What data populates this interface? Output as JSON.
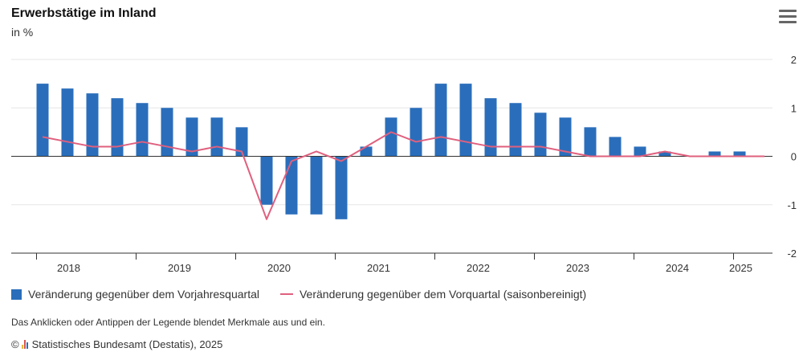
{
  "header": {
    "title": "Erwerbstätige im Inland",
    "subtitle": "in %"
  },
  "menu": {
    "icon": "hamburger-menu-icon"
  },
  "legend": {
    "bars_label": "Veränderung gegenüber dem Vorjahresquartal",
    "line_label": "Veränderung gegenüber dem Vorquartal (saisonbereinigt)"
  },
  "hint": "Das Anklicken oder Antippen der Legende blendet Merkmale aus und ein.",
  "credits": {
    "symbol": "©",
    "text": "Statistisches Bundesamt (Destatis), 2025"
  },
  "colors": {
    "bar": "#2a6ebb",
    "line": "#e0607e",
    "grid": "#e6e6e6",
    "axis": "#333333",
    "logo": [
      "#e8b83a",
      "#d9534f",
      "#2a6ebb"
    ]
  },
  "chart_data": {
    "type": "bar+line",
    "x": [
      "2018 Q1",
      "2018 Q2",
      "2018 Q3",
      "2018 Q4",
      "2019 Q1",
      "2019 Q2",
      "2019 Q3",
      "2019 Q4",
      "2020 Q1",
      "2020 Q2",
      "2020 Q3",
      "2020 Q4",
      "2021 Q1",
      "2021 Q2",
      "2021 Q3",
      "2021 Q4",
      "2022 Q1",
      "2022 Q2",
      "2022 Q3",
      "2022 Q4",
      "2023 Q1",
      "2023 Q2",
      "2023 Q3",
      "2023 Q4",
      "2024 Q1",
      "2024 Q2",
      "2024 Q3",
      "2024 Q4",
      "2025 Q1",
      "2025 Q2"
    ],
    "year_labels": [
      "2018",
      "2019",
      "2020",
      "2021",
      "2022",
      "2023",
      "2024",
      "2025"
    ],
    "series": [
      {
        "name": "Veränderung gegenüber dem Vorjahresquartal",
        "type": "bar",
        "values": [
          1.5,
          1.4,
          1.3,
          1.2,
          1.1,
          1.0,
          0.8,
          0.8,
          0.6,
          -1.0,
          -1.2,
          -1.2,
          -1.3,
          0.2,
          0.8,
          1.0,
          1.5,
          1.5,
          1.2,
          1.1,
          0.9,
          0.8,
          0.6,
          0.4,
          0.2,
          0.1,
          0.0,
          0.1,
          0.1,
          0.0
        ]
      },
      {
        "name": "Veränderung gegenüber dem Vorquartal (saisonbereinigt)",
        "type": "line",
        "values": [
          0.4,
          0.3,
          0.2,
          0.2,
          0.3,
          0.2,
          0.1,
          0.2,
          0.1,
          -1.3,
          -0.1,
          0.1,
          -0.1,
          0.2,
          0.5,
          0.3,
          0.4,
          0.3,
          0.2,
          0.2,
          0.2,
          0.1,
          0.0,
          0.0,
          0.0,
          0.1,
          0.0,
          0.0,
          0.0,
          0.0
        ]
      }
    ],
    "yticks": [
      -2,
      -1,
      0,
      1,
      2
    ],
    "ylim": [
      -2,
      2
    ],
    "y_axis_side": "right",
    "grid": true,
    "legend_position": "bottom-left"
  }
}
